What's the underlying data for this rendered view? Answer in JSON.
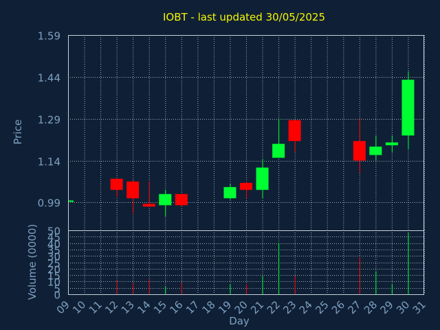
{
  "chart_data": {
    "type": "candlestick",
    "title": "IOBT - last updated 30/05/2025",
    "xlabel": "Day",
    "price_panel": {
      "ylabel": "Price",
      "ylim": [
        0.89,
        1.59
      ],
      "yticks": [
        "0.99",
        "1.14",
        "1.29",
        "1.44",
        "1.59"
      ],
      "ytick_values": [
        0.99,
        1.14,
        1.29,
        1.44,
        1.59
      ]
    },
    "volume_panel": {
      "ylabel": "Volume (0000)",
      "ylim": [
        0,
        50
      ],
      "yticks": [
        "0",
        "5",
        "10",
        "15",
        "20",
        "25",
        "30",
        "35",
        "40",
        "45",
        "50"
      ],
      "ytick_values": [
        0,
        5,
        10,
        15,
        20,
        25,
        30,
        35,
        40,
        45,
        50
      ]
    },
    "x_ticks": [
      "09",
      "10",
      "11",
      "12",
      "13",
      "14",
      "15",
      "16",
      "17",
      "18",
      "19",
      "20",
      "21",
      "22",
      "23",
      "24",
      "25",
      "26",
      "27",
      "28",
      "29",
      "30",
      "31"
    ],
    "candles": [
      {
        "day": 9,
        "open": 0.995,
        "high": 0.997,
        "low": 0.993,
        "close": 0.997,
        "volume": 0
      },
      {
        "day": 12,
        "open": 1.075,
        "high": 1.075,
        "low": 1.01,
        "close": 1.035,
        "volume": 11
      },
      {
        "day": 13,
        "open": 1.065,
        "high": 1.07,
        "low": 0.95,
        "close": 1.005,
        "volume": 9
      },
      {
        "day": 14,
        "open": 0.985,
        "high": 1.065,
        "low": 0.975,
        "close": 0.975,
        "volume": 12
      },
      {
        "day": 15,
        "open": 0.98,
        "high": 1.035,
        "low": 0.94,
        "close": 1.02,
        "volume": 6
      },
      {
        "day": 16,
        "open": 1.02,
        "high": 1.02,
        "low": 0.975,
        "close": 0.98,
        "volume": 9
      },
      {
        "day": 19,
        "open": 1.005,
        "high": 1.055,
        "low": 1.0,
        "close": 1.045,
        "volume": 8
      },
      {
        "day": 20,
        "open": 1.06,
        "high": 1.065,
        "low": 1.005,
        "close": 1.035,
        "volume": 8
      },
      {
        "day": 21,
        "open": 1.035,
        "high": 1.145,
        "low": 1.005,
        "close": 1.115,
        "volume": 14
      },
      {
        "day": 22,
        "open": 1.15,
        "high": 1.29,
        "low": 1.15,
        "close": 1.2,
        "volume": 40
      },
      {
        "day": 23,
        "open": 1.285,
        "high": 1.285,
        "low": 1.17,
        "close": 1.21,
        "volume": 14
      },
      {
        "day": 27,
        "open": 1.21,
        "high": 1.29,
        "low": 1.095,
        "close": 1.14,
        "volume": 29
      },
      {
        "day": 28,
        "open": 1.16,
        "high": 1.23,
        "low": 1.14,
        "close": 1.19,
        "volume": 18
      },
      {
        "day": 29,
        "open": 1.195,
        "high": 1.23,
        "low": 1.17,
        "close": 1.205,
        "volume": 8
      },
      {
        "day": 30,
        "open": 1.23,
        "high": 1.46,
        "low": 1.18,
        "close": 1.43,
        "volume": 48
      }
    ],
    "colors": {
      "background": "#0f2036",
      "grid": "#c8d0dc",
      "axis_text": "#7ea0c0",
      "title": "#f6f600",
      "up": "#00ff32",
      "down": "#ff0000"
    }
  }
}
